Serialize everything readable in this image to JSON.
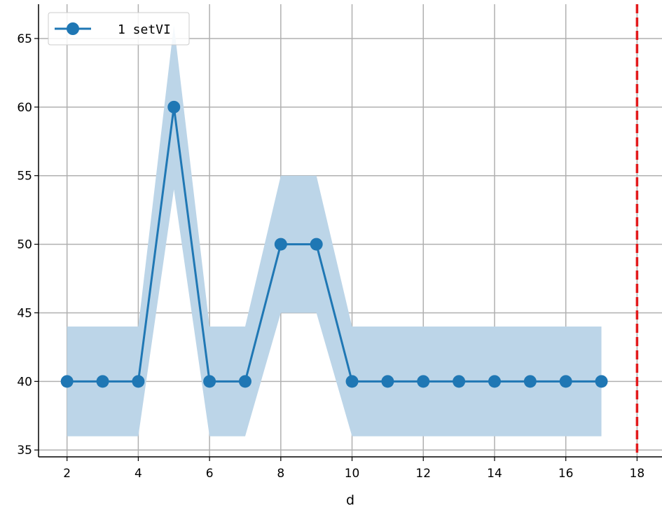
{
  "chart_data": {
    "type": "line",
    "title": "",
    "xlabel": "d",
    "ylabel": "",
    "xlim": [
      1.2,
      18.7
    ],
    "ylim": [
      34.5,
      67.5
    ],
    "xticks": [
      2,
      4,
      6,
      8,
      10,
      12,
      14,
      16,
      18
    ],
    "yticks": [
      35,
      40,
      45,
      50,
      55,
      60,
      65
    ],
    "grid": true,
    "legend_position": "top-left",
    "series": [
      {
        "name": "1 setVI",
        "color": "#1f77b4",
        "band_color": "#bcd5e8",
        "x": [
          2,
          3,
          4,
          5,
          6,
          7,
          8,
          9,
          10,
          11,
          12,
          13,
          14,
          15,
          16,
          17
        ],
        "y": [
          40,
          40,
          40,
          60,
          40,
          40,
          50,
          50,
          40,
          40,
          40,
          40,
          40,
          40,
          40,
          40
        ],
        "lower": [
          36,
          36,
          36,
          54,
          36,
          36,
          45,
          45,
          36,
          36,
          36,
          36,
          36,
          36,
          36,
          36
        ],
        "upper": [
          44,
          44,
          44,
          66,
          44,
          44,
          55,
          55,
          44,
          44,
          44,
          44,
          44,
          44,
          44,
          44
        ]
      }
    ],
    "vline": {
      "x": 18,
      "color": "#e31a1c",
      "style": "dashed"
    }
  }
}
